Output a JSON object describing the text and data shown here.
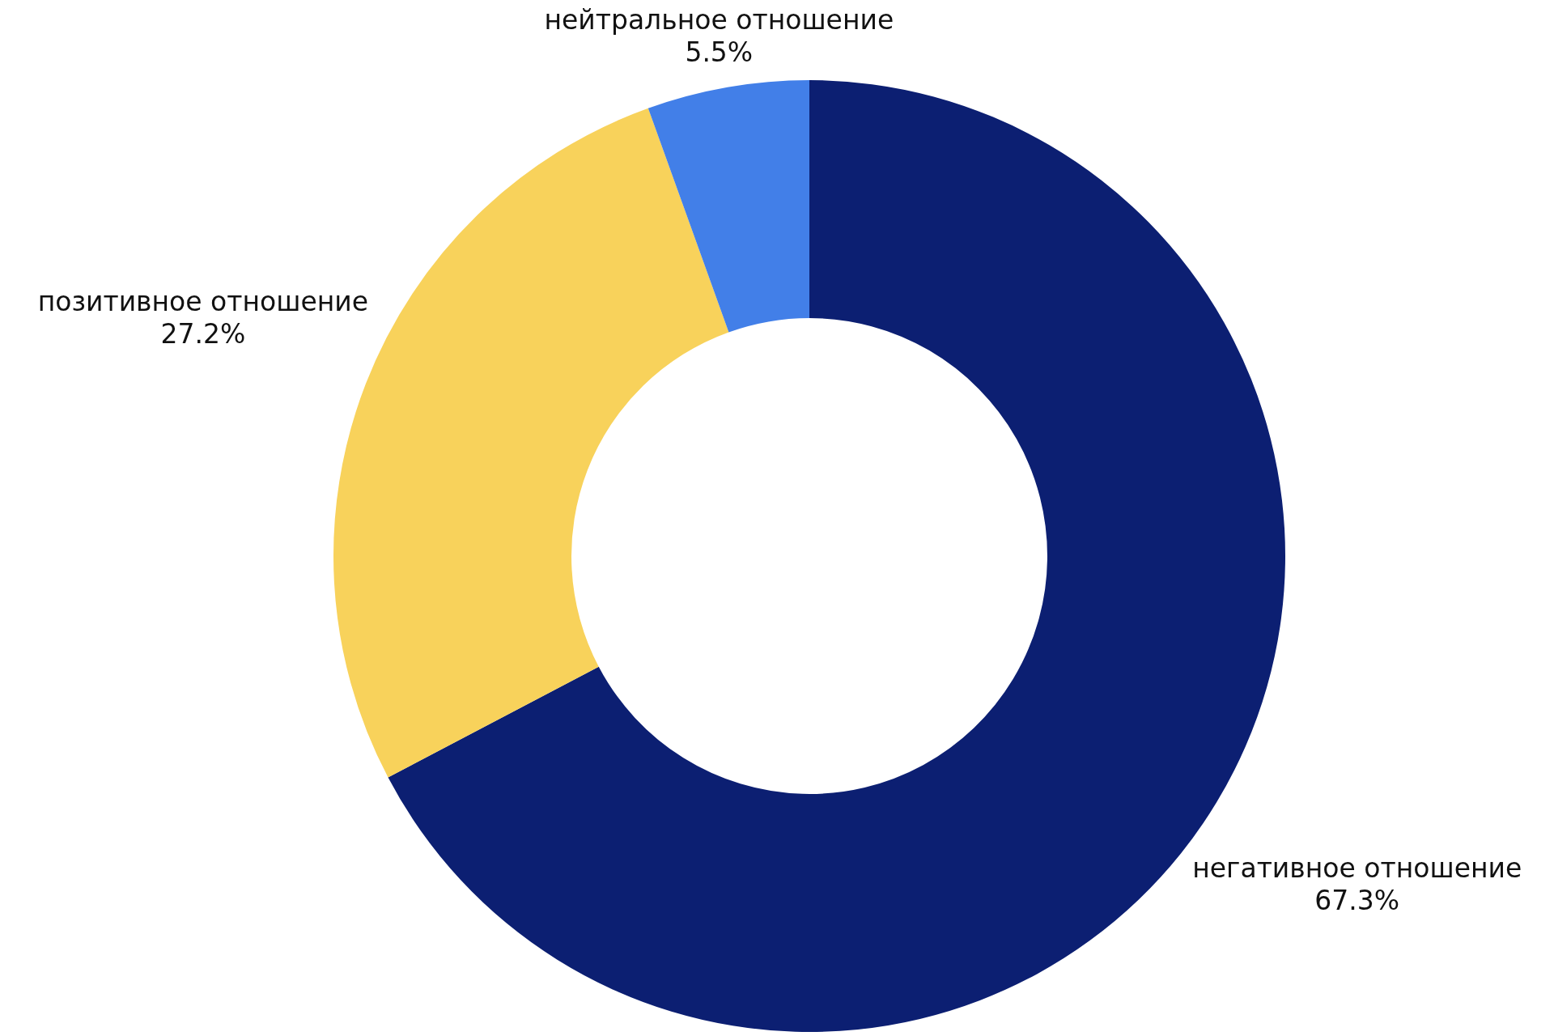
{
  "chart_data": {
    "type": "donut",
    "categories": [
      "негативное отношение",
      "позитивное отношение",
      "нейтральное отношение"
    ],
    "values": [
      67.3,
      27.2,
      5.5
    ],
    "colors": [
      "#0c1f72",
      "#f8d25b",
      "#427fe8"
    ],
    "value_labels": [
      "67.3%",
      "27.2%",
      "5.5%"
    ],
    "legend": false
  }
}
